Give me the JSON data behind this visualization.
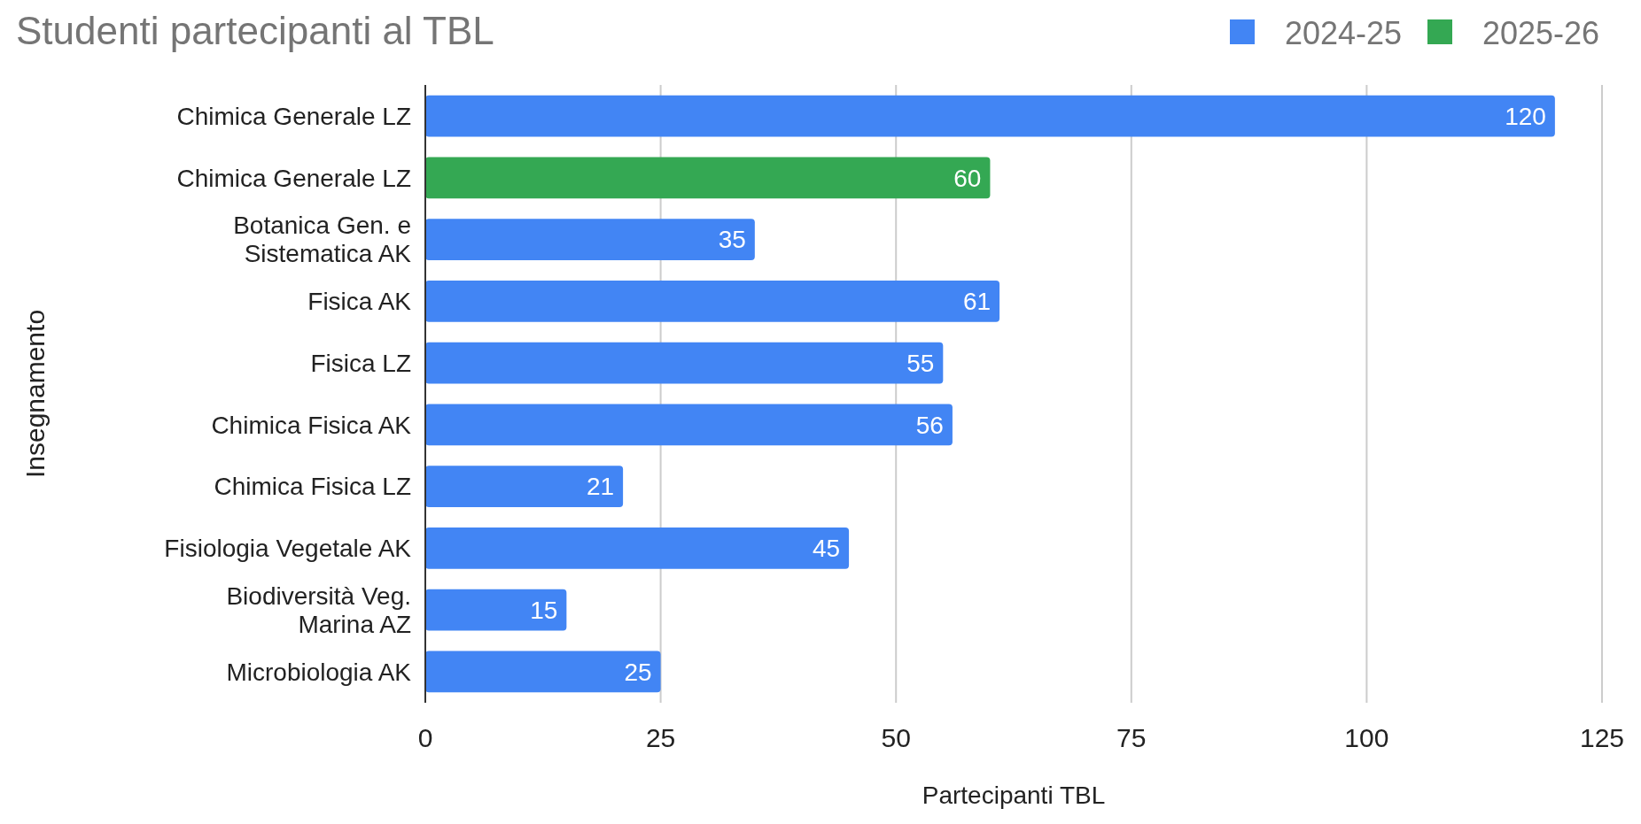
{
  "chart_data": {
    "type": "bar",
    "orientation": "horizontal",
    "title": "Studenti partecipanti al TBL",
    "xlabel": "Partecipanti TBL",
    "ylabel": "Insegnamento",
    "categories": [
      "Chimica Generale LZ",
      "Chimica Generale LZ",
      "Botanica Gen. e Sistematica AK",
      "Fisica AK",
      "Fisica LZ",
      "Chimica Fisica AK",
      "Chimica Fisica LZ",
      "Fisiologia Vegetale AK",
      "Biodiversità Veg. Marina AZ",
      "Microbiologia AK"
    ],
    "series": [
      {
        "name": "2024-25",
        "color": "#4285f4",
        "values": [
          120,
          null,
          35,
          61,
          55,
          56,
          21,
          45,
          15,
          25
        ]
      },
      {
        "name": "2025-26",
        "color": "#34a853",
        "values": [
          null,
          60,
          null,
          null,
          null,
          null,
          null,
          null,
          null,
          null
        ]
      }
    ],
    "xlim": [
      0,
      125
    ],
    "xticks": [
      0,
      25,
      50,
      75,
      100,
      125
    ],
    "grid": "x",
    "legend": "top right",
    "data_labels": true
  }
}
